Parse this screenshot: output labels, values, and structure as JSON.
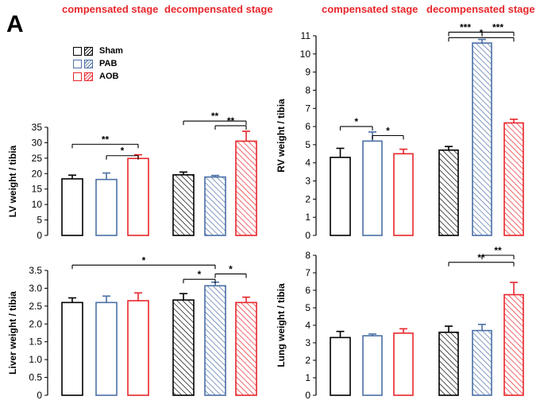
{
  "figure": {
    "panel_label": "A",
    "stage_labels": {
      "compensated": "compensated stage",
      "decompensated": "decompensated stage"
    },
    "colors": {
      "Sham": "#000000",
      "PAB": "#4a6fa5",
      "AOB": "#e8262b"
    },
    "legend": [
      {
        "name": "Sham",
        "color": "#000000"
      },
      {
        "name": "PAB",
        "color": "#4a6fa5"
      },
      {
        "name": "AOB",
        "color": "#e8262b"
      }
    ]
  },
  "chart_data": [
    {
      "type": "bar",
      "ylabel": "LV weight / tibia",
      "ylim": [
        0,
        35
      ],
      "yticks": [
        0,
        5,
        10,
        15,
        20,
        25,
        30,
        35
      ],
      "groups": [
        "compensated stage",
        "decompensated stage"
      ],
      "series": [
        {
          "name": "Sham",
          "values": [
            18.3,
            19.6
          ],
          "errors": [
            1.2,
            0.9
          ]
        },
        {
          "name": "PAB",
          "values": [
            18.1,
            18.9
          ],
          "errors": [
            2.1,
            0.5
          ]
        },
        {
          "name": "AOB",
          "values": [
            24.9,
            30.5
          ],
          "errors": [
            1.2,
            3.2
          ]
        }
      ],
      "significance": [
        {
          "group": 0,
          "from": "Sham",
          "to": "AOB",
          "label": "**",
          "y": 29.5
        },
        {
          "group": 0,
          "from": "PAB",
          "to": "AOB",
          "label": "*",
          "y": 25.8
        },
        {
          "group": 1,
          "from": "Sham",
          "to": "AOB",
          "label": "**",
          "y": 37.0
        },
        {
          "group": 1,
          "from": "PAB",
          "to": "AOB",
          "label": "**",
          "y": 35.5
        }
      ]
    },
    {
      "type": "bar",
      "ylabel": "RV weight / tibia",
      "ylim": [
        0,
        11
      ],
      "yticks": [
        0,
        1,
        2,
        3,
        4,
        5,
        6,
        7,
        8,
        9,
        10,
        11
      ],
      "groups": [
        "compensated stage",
        "decompensated stage"
      ],
      "series": [
        {
          "name": "Sham",
          "values": [
            4.3,
            4.7
          ],
          "errors": [
            0.5,
            0.2
          ]
        },
        {
          "name": "PAB",
          "values": [
            5.2,
            10.6
          ],
          "errors": [
            0.5,
            0.2
          ]
        },
        {
          "name": "AOB",
          "values": [
            4.5,
            6.2
          ],
          "errors": [
            0.25,
            0.2
          ]
        }
      ],
      "significance": [
        {
          "group": 0,
          "from": "Sham",
          "to": "PAB",
          "label": "*",
          "y": 6.0
        },
        {
          "group": 0,
          "from": "PAB",
          "to": "AOB",
          "label": "*",
          "y": 5.5
        },
        {
          "group": 1,
          "from": "Sham",
          "to": "PAB",
          "label": "***",
          "y": 11.2
        },
        {
          "group": 1,
          "from": "Sham",
          "to": "AOB",
          "label": "*",
          "y": 10.9
        },
        {
          "group": 1,
          "from": "PAB",
          "to": "AOB",
          "label": "***",
          "y": 11.2
        }
      ]
    },
    {
      "type": "bar",
      "ylabel": "Liver weight / tibia",
      "ylim": [
        0,
        3.5
      ],
      "yticks": [
        0,
        0.5,
        1.0,
        1.5,
        2.0,
        2.5,
        3.0,
        3.5
      ],
      "yticklabels": [
        "0",
        "0.5",
        "1.0",
        "1.5",
        "2.0",
        "2.5",
        "3.0",
        "3.5"
      ],
      "groups": [
        "compensated stage",
        "decompensated stage"
      ],
      "series": [
        {
          "name": "Sham",
          "values": [
            2.6,
            2.67
          ],
          "errors": [
            0.13,
            0.18
          ]
        },
        {
          "name": "PAB",
          "values": [
            2.6,
            3.07
          ],
          "errors": [
            0.18,
            0.1
          ]
        },
        {
          "name": "AOB",
          "values": [
            2.65,
            2.6
          ],
          "errors": [
            0.22,
            0.15
          ]
        }
      ],
      "significance": [
        {
          "group": "cross",
          "from": "compensated Sham",
          "to": "decompensated PAB",
          "label": "*",
          "y": 3.65
        },
        {
          "group": 1,
          "from": "Sham",
          "to": "PAB",
          "label": "*",
          "y": 3.25
        },
        {
          "group": 1,
          "from": "PAB",
          "to": "AOB",
          "label": "*",
          "y": 3.4
        }
      ]
    },
    {
      "type": "bar",
      "ylabel": "Lung weight / tibia",
      "ylim": [
        0,
        8
      ],
      "yticks": [
        0,
        1,
        2,
        3,
        4,
        5,
        6,
        7,
        8
      ],
      "groups": [
        "compensated stage",
        "decompensated stage"
      ],
      "series": [
        {
          "name": "Sham",
          "values": [
            3.3,
            3.6
          ],
          "errors": [
            0.35,
            0.35
          ]
        },
        {
          "name": "PAB",
          "values": [
            3.4,
            3.7
          ],
          "errors": [
            0.1,
            0.35
          ]
        },
        {
          "name": "AOB",
          "values": [
            3.55,
            5.75
          ],
          "errors": [
            0.25,
            0.7
          ]
        }
      ],
      "significance": [
        {
          "group": 1,
          "from": "Sham",
          "to": "AOB",
          "label": "**",
          "y": 7.6
        },
        {
          "group": 1,
          "from": "PAB",
          "to": "AOB",
          "label": "**",
          "y": 8.0
        }
      ]
    }
  ]
}
